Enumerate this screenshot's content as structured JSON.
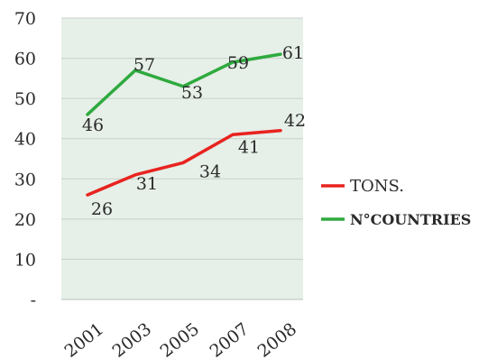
{
  "chart_data": {
    "type": "line",
    "categories": [
      "2001",
      "2003",
      "2005",
      "2007",
      "2008"
    ],
    "series": [
      {
        "name": "TONS.",
        "values": [
          26,
          31,
          34,
          41,
          42
        ],
        "color": "#e8231f",
        "point_labels": [
          "26",
          "31",
          "34",
          "41",
          "42"
        ]
      },
      {
        "name": "N°COUNTRIES",
        "values": [
          46,
          57,
          53,
          59,
          61
        ],
        "color": "#2eaa3e",
        "point_labels": [
          "46",
          "57",
          "53",
          "59",
          "61"
        ]
      }
    ],
    "y_ticks": [
      {
        "value": 0,
        "label": "-"
      },
      {
        "value": 10,
        "label": "10"
      },
      {
        "value": 20,
        "label": "20"
      },
      {
        "value": 30,
        "label": "30"
      },
      {
        "value": 40,
        "label": "40"
      },
      {
        "value": 50,
        "label": "50"
      },
      {
        "value": 60,
        "label": "60"
      },
      {
        "value": 70,
        "label": "70"
      }
    ],
    "ylim": [
      0,
      70
    ],
    "grid": true,
    "legend_position": "right",
    "plot_background": "#e6efe8",
    "grid_color": "#c8d2cb"
  }
}
